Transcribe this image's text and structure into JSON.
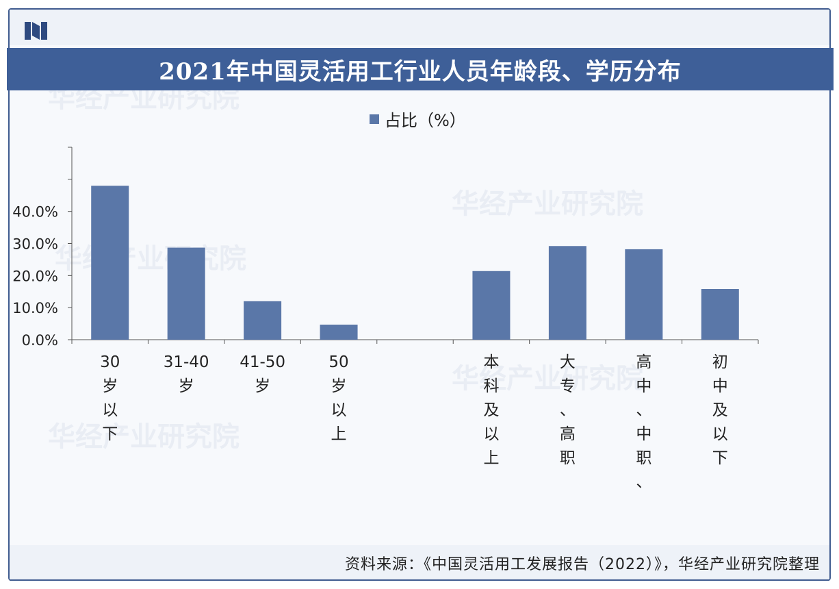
{
  "header": {
    "title": "2021年中国灵活用工行业人员年龄段、学历分布"
  },
  "watermark": {
    "text": "华经产业研究院"
  },
  "legend": {
    "label": "占比（%）"
  },
  "footer": {
    "source": "资料来源：《中国灵活用工发展报告（2022）》，华经产业研究院整理"
  },
  "colors": {
    "bar": "#5a77a8",
    "title_bg": "#3e5f98",
    "axis": "#555555"
  },
  "chart_data": {
    "type": "bar",
    "title": "2021年中国灵活用工行业人员年龄段、学历分布",
    "categories": [
      "30岁以下",
      "31-40岁",
      "41-50岁",
      "50岁以上",
      "",
      "本科及以上",
      "大专、高职",
      "高中、中职、",
      "初中及以下"
    ],
    "series": [
      {
        "name": "占比（%）",
        "values": [
          48.0,
          28.7,
          12.0,
          4.7,
          null,
          21.4,
          29.2,
          28.2,
          15.8
        ]
      }
    ],
    "yticks": [
      "0.0%",
      "10.0%",
      "20.0%",
      "30.0%",
      "40.0%"
    ],
    "ylim": [
      0,
      60
    ],
    "grid": false,
    "legend_position": "top-center"
  }
}
